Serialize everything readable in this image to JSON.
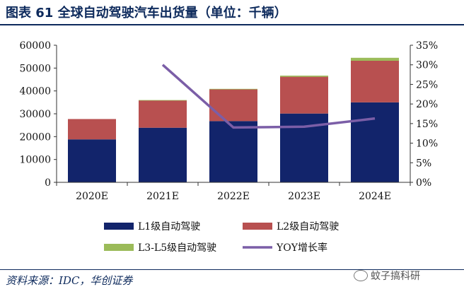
{
  "header": {
    "title": "图表 61   全球自动驾驶汽车出货量（单位：千辆）"
  },
  "footer": {
    "source": "资料来源：IDC，华创证券",
    "watermark": "蚊子搞科研"
  },
  "colors": {
    "l1": "#12246b",
    "l2": "#b85050",
    "l35": "#9bbb59",
    "yoy": "#7b5ea7"
  },
  "chart_data": {
    "type": "bar",
    "stacked": true,
    "categories": [
      "2020E",
      "2021E",
      "2022E",
      "2023E",
      "2024E"
    ],
    "series": [
      {
        "name": "L1级自动驾驶",
        "kind": "bar",
        "axis": "left",
        "values": [
          18800,
          23900,
          26800,
          30100,
          35000
        ]
      },
      {
        "name": "L2级自动驾驶",
        "kind": "bar",
        "axis": "left",
        "values": [
          8900,
          12000,
          13900,
          16100,
          18200
        ]
      },
      {
        "name": "L3-L5级自动驾驶",
        "kind": "bar",
        "axis": "left",
        "values": [
          0,
          100,
          200,
          500,
          1300
        ]
      },
      {
        "name": "YOY增长率",
        "kind": "line",
        "axis": "right",
        "values": [
          null,
          0.3,
          0.14,
          0.142,
          0.163
        ]
      }
    ],
    "left_axis": {
      "ylim": [
        0,
        60000
      ],
      "ticks": [
        "0",
        "10000",
        "20000",
        "30000",
        "40000",
        "50000",
        "60000"
      ]
    },
    "right_axis": {
      "ylim": [
        0,
        0.35
      ],
      "ticks": [
        "0%",
        "5%",
        "10%",
        "15%",
        "20%",
        "25%",
        "30%",
        "35%"
      ]
    },
    "legend_position": "bottom"
  }
}
